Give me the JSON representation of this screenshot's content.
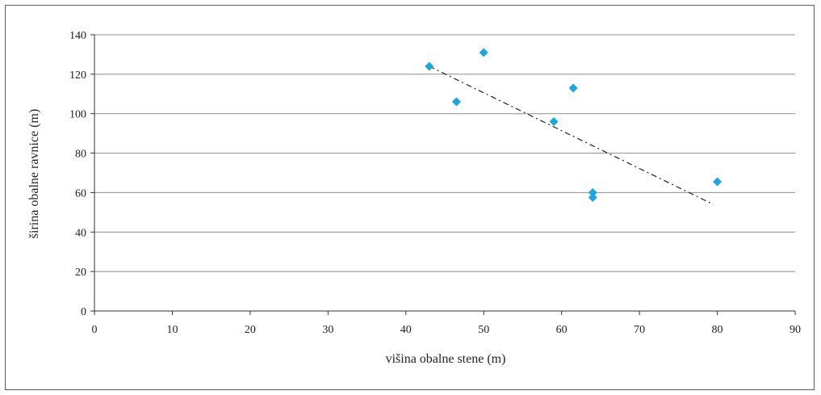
{
  "chart_data": {
    "type": "scatter",
    "title": "",
    "xlabel": "višina obalne stene (m)",
    "ylabel": "širina obalne ravnice (m)",
    "xlim": [
      0,
      90
    ],
    "ylim": [
      0,
      140
    ],
    "xticks": [
      0,
      10,
      20,
      30,
      40,
      50,
      60,
      70,
      80,
      90
    ],
    "yticks": [
      0,
      20,
      40,
      60,
      80,
      100,
      120,
      140
    ],
    "grid": "horizontal",
    "marker_color": "#1ba6e0",
    "trendline_color": "#222222",
    "series": [
      {
        "points": [
          {
            "x": 43,
            "y": 124
          },
          {
            "x": 46.5,
            "y": 106
          },
          {
            "x": 50,
            "y": 131
          },
          {
            "x": 59,
            "y": 96
          },
          {
            "x": 61.5,
            "y": 113
          },
          {
            "x": 64,
            "y": 60
          },
          {
            "x": 64,
            "y": 57.5
          },
          {
            "x": 80,
            "y": 65.5
          }
        ]
      }
    ],
    "trendline": {
      "x": [
        43,
        79.5
      ],
      "y": [
        124,
        54
      ]
    }
  }
}
